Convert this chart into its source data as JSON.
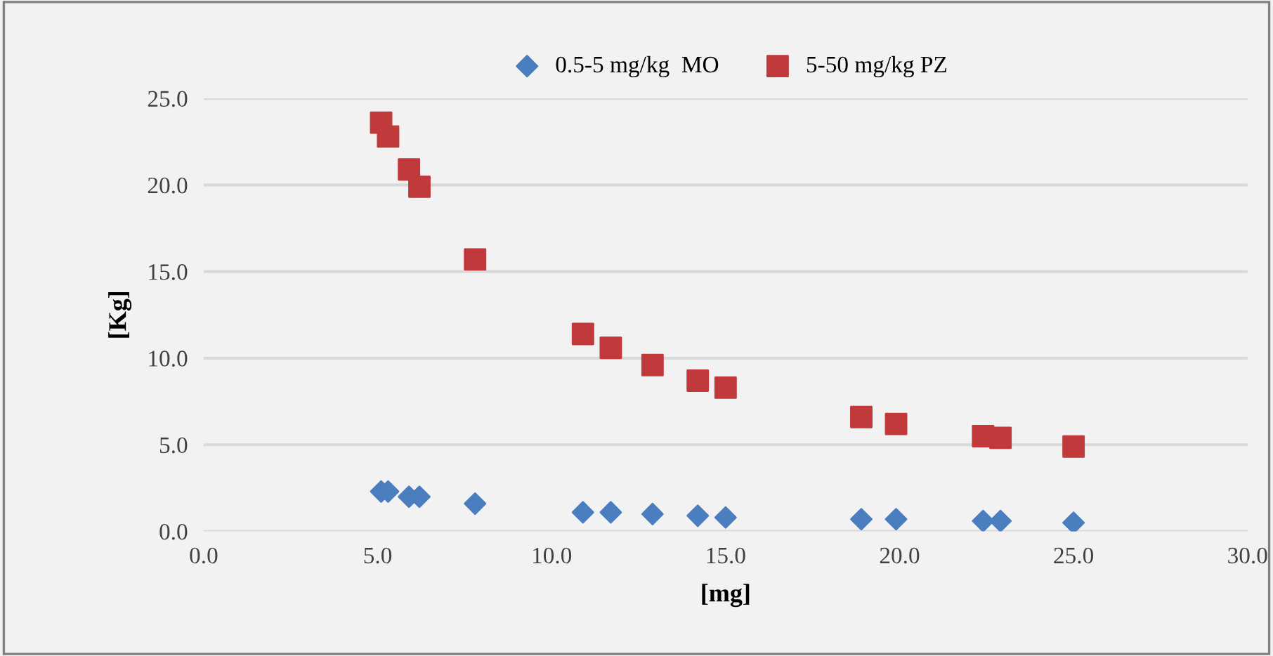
{
  "chart_data": {
    "type": "scatter",
    "xlabel": "[mg]",
    "ylabel": "[Kg]",
    "x": [
      5.1,
      5.3,
      5.9,
      6.2,
      7.8,
      10.9,
      11.7,
      12.9,
      14.2,
      15.0,
      18.9,
      19.9,
      22.4,
      22.9,
      25.0
    ],
    "series": [
      {
        "name": "0.5-5 mg/kg  MO",
        "color": "#4a7ebf",
        "marker": "diamond",
        "values": [
          2.3,
          2.3,
          2.0,
          2.0,
          1.6,
          1.1,
          1.1,
          1.0,
          0.9,
          0.8,
          0.7,
          0.7,
          0.6,
          0.6,
          0.5
        ]
      },
      {
        "name": "5-50 mg/kg PZ",
        "color": "#c0393b",
        "marker": "square",
        "values": [
          23.6,
          22.8,
          20.9,
          19.9,
          15.7,
          11.4,
          10.6,
          9.6,
          8.7,
          8.3,
          6.6,
          6.2,
          5.5,
          5.4,
          4.9
        ]
      }
    ],
    "xlim": [
      0,
      30
    ],
    "xticks": [
      {
        "value": 0,
        "label": "0.0"
      },
      {
        "value": 5,
        "label": "5.0"
      },
      {
        "value": 10,
        "label": "10.0"
      },
      {
        "value": 15,
        "label": "15.0"
      },
      {
        "value": 20,
        "label": "20.0"
      },
      {
        "value": 25,
        "label": "25.0"
      },
      {
        "value": 30,
        "label": "30.0"
      }
    ],
    "ylim": [
      0,
      25
    ],
    "yticks": [
      {
        "value": 0,
        "label": "0.0"
      },
      {
        "value": 5,
        "label": "5.0"
      },
      {
        "value": 10,
        "label": "10.0"
      },
      {
        "value": 15,
        "label": "15.0"
      },
      {
        "value": 20,
        "label": "20.0"
      },
      {
        "value": 25,
        "label": "25.0"
      }
    ],
    "grid": "y",
    "legend": "top"
  }
}
